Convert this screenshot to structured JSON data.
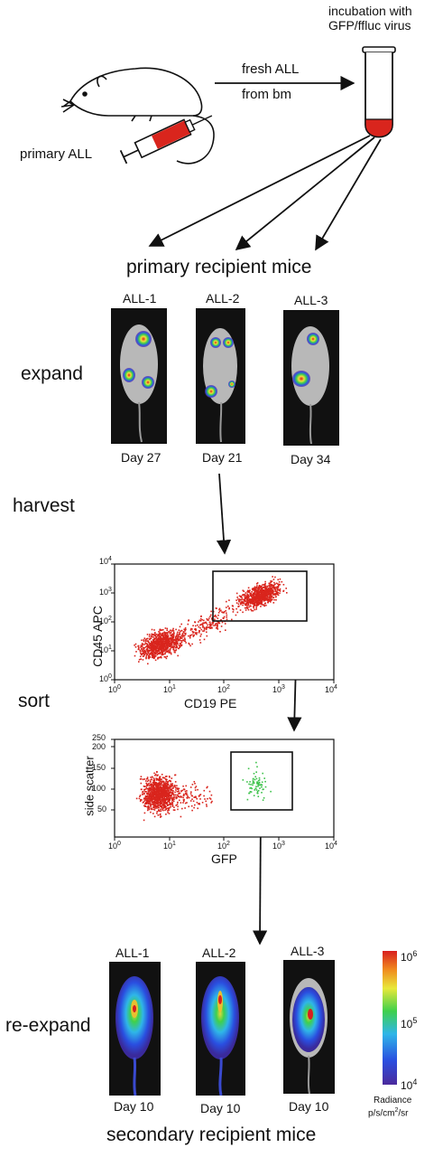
{
  "top": {
    "incubation_line1": "incubation with",
    "incubation_line2": "GFP/ffluc virus",
    "fresh_all": "fresh ALL",
    "from_bm": "from bm",
    "primary_all": "primary ALL"
  },
  "primary": {
    "title": "primary recipient mice",
    "mice": [
      {
        "label": "ALL-1",
        "day": "Day 27"
      },
      {
        "label": "ALL-2",
        "day": "Day 21"
      },
      {
        "label": "ALL-3",
        "day": "Day 34"
      }
    ]
  },
  "steps": {
    "expand": "expand",
    "harvest": "harvest",
    "sort": "sort",
    "re_expand": "re-expand"
  },
  "plot1": {
    "ylabel": "CD45 APC",
    "xlabel": "CD19 PE",
    "xticks": [
      "10",
      "10",
      "10",
      "10",
      "10"
    ],
    "xexp": [
      "0",
      "1",
      "2",
      "3",
      "4"
    ],
    "yticks": [
      "10",
      "10",
      "10",
      "10",
      "10"
    ],
    "yexp": [
      "0",
      "1",
      "2",
      "3",
      "4"
    ]
  },
  "plot2": {
    "ylabel": "side scatter",
    "xlabel": "GFP",
    "yticks": [
      "50",
      "100",
      "150",
      "200",
      "250"
    ],
    "xticks": [
      "10",
      "10",
      "10",
      "10",
      "10"
    ],
    "xexp": [
      "0",
      "1",
      "2",
      "3",
      "4"
    ]
  },
  "secondary": {
    "title": "secondary recipient mice",
    "mice": [
      {
        "label": "ALL-1",
        "day": "Day 10"
      },
      {
        "label": "ALL-2",
        "day": "Day 10"
      },
      {
        "label": "ALL-3",
        "day": "Day 10"
      }
    ]
  },
  "colorbar": {
    "top_base": "10",
    "top_exp": "6",
    "mid_base": "10",
    "mid_exp": "5",
    "bot_base": "10",
    "bot_exp": "4",
    "label": "Radiance",
    "unit_pre": "p/s/cm",
    "unit_sup": "2",
    "unit_post": "/sr"
  },
  "colors": {
    "red": "#d9251d",
    "green": "#3cc24a",
    "black": "#111111"
  }
}
